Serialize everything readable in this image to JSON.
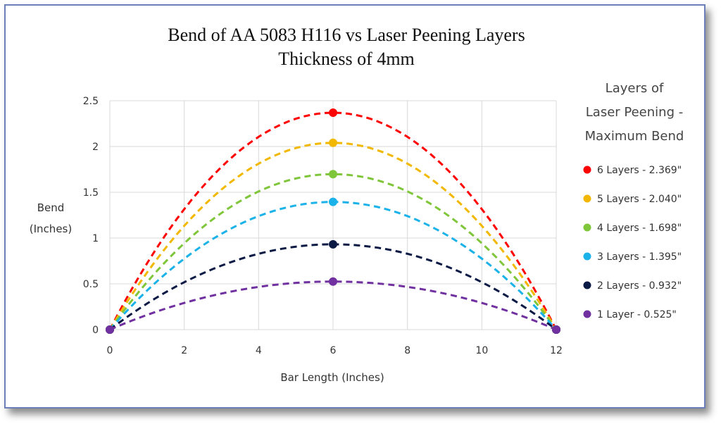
{
  "chart_data": {
    "type": "line",
    "title": [
      "Bend of AA 5083 H116 vs Laser Peening Layers",
      "Thickness of 4mm"
    ],
    "xlabel": "Bar Length (Inches)",
    "ylabel": [
      "Bend",
      "(Inches)"
    ],
    "xlim": [
      0,
      12
    ],
    "ylim": [
      0,
      2.5
    ],
    "xticks": [
      "0",
      "2",
      "4",
      "6",
      "8",
      "10",
      "12"
    ],
    "yticks": [
      "0",
      "0.5",
      "1",
      "1.5",
      "2",
      "2.5"
    ],
    "grid": true,
    "legend": {
      "title": [
        "Layers of",
        "Laser Peening -",
        "Maximum Bend"
      ],
      "placement": "right"
    },
    "series": [
      {
        "name": "6 Layers - 2.369\"",
        "color": "#ff0000",
        "x": [
          0,
          6,
          12
        ],
        "y": [
          0,
          2.369,
          0
        ]
      },
      {
        "name": "5 Layers - 2.040\"",
        "color": "#f2b800",
        "x": [
          0,
          6,
          12
        ],
        "y": [
          0,
          2.04,
          0
        ]
      },
      {
        "name": "4 Layers - 1.698\"",
        "color": "#7fc63a",
        "x": [
          0,
          6,
          12
        ],
        "y": [
          0,
          1.698,
          0
        ]
      },
      {
        "name": "3 Layers - 1.395\"",
        "color": "#1ab2e8",
        "x": [
          0,
          6,
          12
        ],
        "y": [
          0,
          1.395,
          0
        ]
      },
      {
        "name": "2 Layers - 0.932\"",
        "color": "#0b1a45",
        "x": [
          0,
          6,
          12
        ],
        "y": [
          0,
          0.932,
          0
        ]
      },
      {
        "name": "1 Layer - 0.525\"",
        "color": "#7030a0",
        "x": [
          0,
          6,
          12
        ],
        "y": [
          0,
          0.525,
          0
        ]
      }
    ]
  }
}
